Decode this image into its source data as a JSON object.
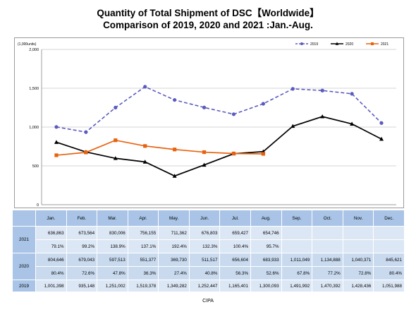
{
  "title": {
    "line1": "Quantity of Total Shipment of DSC【Worldwide】",
    "line2": "Comparison of 2019, 2020 and 2021 :Jan.-Aug."
  },
  "source": "CIPA",
  "colors": {
    "s2019": "#5b5bbf",
    "s2020": "#000000",
    "s2021": "#e8620e"
  },
  "chart_data": {
    "type": "line",
    "unit_label": "(1,000units)",
    "categories": [
      "Jan.",
      "Feb.",
      "Mar.",
      "Apr.",
      "May.",
      "Jun.",
      "Jul.",
      "Aug.",
      "Sep.",
      "Oct.",
      "Nov.",
      "Dec."
    ],
    "ylim": [
      0,
      2000
    ],
    "yticks": [
      0,
      500,
      1000,
      1500,
      2000
    ],
    "ytick_labels": [
      "0",
      "500",
      "1,000",
      "1,500",
      "2,000"
    ],
    "grid": true,
    "legend_position": "top-right",
    "series": [
      {
        "name": "2019",
        "style": "dashed",
        "marker": "circle",
        "color": "#5b5bbf",
        "values": [
          1001.398,
          935.148,
          1251.002,
          1519.378,
          1349.282,
          1252.447,
          1165.401,
          1300.093,
          1491.992,
          1470.392,
          1428.436,
          1051.988
        ]
      },
      {
        "name": "2020",
        "style": "solid",
        "marker": "triangle",
        "color": "#000000",
        "values": [
          804.646,
          679.043,
          597.513,
          551.377,
          369.73,
          511.517,
          656.604,
          683.933,
          1011.049,
          1134.888,
          1040.371,
          845.621
        ]
      },
      {
        "name": "2021",
        "style": "solid",
        "marker": "square",
        "color": "#e8620e",
        "values": [
          636.863,
          673.564,
          830.006,
          756.155,
          711.362,
          676.803,
          659.427,
          654.746,
          null,
          null,
          null,
          null
        ]
      }
    ]
  },
  "table": {
    "months": [
      "Jan.",
      "Feb.",
      "Mar.",
      "Apr.",
      "May.",
      "Jun.",
      "Jul.",
      "Aug.",
      "Sep.",
      "Oct.",
      "Nov.",
      "Dec."
    ],
    "rows": [
      {
        "year": "2021",
        "values": [
          "636,863",
          "673,564",
          "830,006",
          "756,155",
          "711,362",
          "676,803",
          "659,427",
          "654,746",
          "",
          "",
          "",
          ""
        ],
        "pct": [
          "79.1%",
          "99.2%",
          "138.9%",
          "137.1%",
          "192.4%",
          "132.3%",
          "100.4%",
          "95.7%",
          "",
          "",
          "",
          ""
        ]
      },
      {
        "year": "2020",
        "values": [
          "804,646",
          "679,043",
          "597,513",
          "551,377",
          "369,730",
          "511,517",
          "656,604",
          "683,933",
          "1,011,049",
          "1,134,888",
          "1,040,371",
          "845,621"
        ],
        "pct": [
          "80.4%",
          "72.6%",
          "47.8%",
          "36.3%",
          "27.4%",
          "40.8%",
          "56.3%",
          "52.6%",
          "67.8%",
          "77.2%",
          "72.8%",
          "80.4%"
        ]
      },
      {
        "year": "2019",
        "values": [
          "1,001,398",
          "935,148",
          "1,251,002",
          "1,519,378",
          "1,349,282",
          "1,252,447",
          "1,165,401",
          "1,300,093",
          "1,491,992",
          "1,470,392",
          "1,428,436",
          "1,051,988"
        ]
      }
    ]
  }
}
